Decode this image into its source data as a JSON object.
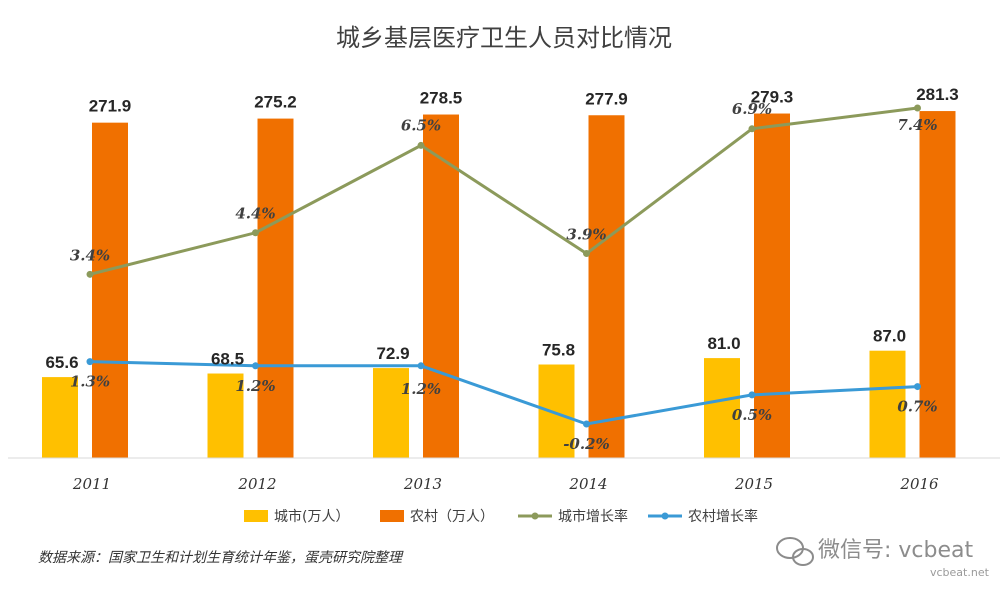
{
  "chart_data": {
    "type": "bar",
    "title": "城乡基层医疗卫生人员对比情况",
    "categories": [
      "2011",
      "2012",
      "2013",
      "2014",
      "2015",
      "2016"
    ],
    "series": [
      {
        "name": "城市(万人）",
        "kind": "bar",
        "color": "#ffc000",
        "values": [
          65.6,
          68.5,
          72.9,
          75.8,
          81.0,
          87.0
        ],
        "labels": [
          "65.6",
          "68.5",
          "72.9",
          "75.8",
          "81.0",
          "87.0"
        ]
      },
      {
        "name": "农村（万人）",
        "kind": "bar",
        "color": "#f07000",
        "values": [
          271.9,
          275.2,
          278.5,
          277.9,
          279.3,
          281.3
        ],
        "labels": [
          "271.9",
          "275.2",
          "278.5",
          "277.9",
          "279.3",
          "281.3"
        ]
      },
      {
        "name": "城市增长率",
        "kind": "line",
        "color": "#8c9a5b",
        "values": [
          3.4,
          4.4,
          6.5,
          3.9,
          6.9,
          7.4
        ],
        "labels": [
          "3.4%",
          "4.4%",
          "6.5%",
          "3.9%",
          "6.9%",
          "7.4%"
        ]
      },
      {
        "name": "农村增长率",
        "kind": "line",
        "color": "#3a9ad6",
        "values": [
          1.3,
          1.2,
          1.2,
          -0.2,
          0.5,
          0.7
        ],
        "labels": [
          "1.3%",
          "1.2%",
          "1.2%",
          "-0.2%",
          "0.5%",
          "0.7%"
        ]
      }
    ],
    "ylim": [
      0,
      300
    ],
    "xlabel": "",
    "ylabel": "",
    "grid": false,
    "legend_position": "bottom"
  },
  "source_note": "数据来源：国家卫生和计划生育统计年鉴，蛋壳研究院整理",
  "watermark": {
    "text": "微信号: vcbeat",
    "site": "vcbeat.net"
  }
}
